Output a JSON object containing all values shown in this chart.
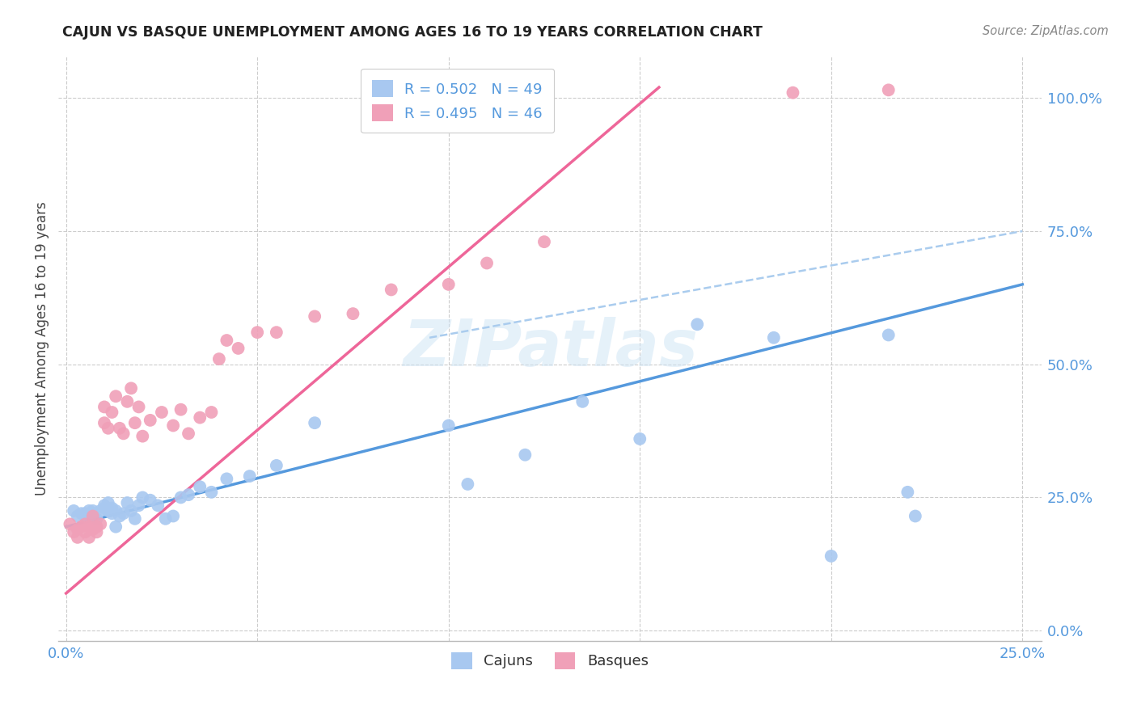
{
  "title": "CAJUN VS BASQUE UNEMPLOYMENT AMONG AGES 16 TO 19 YEARS CORRELATION CHART",
  "source": "Source: ZipAtlas.com",
  "ylabel": "Unemployment Among Ages 16 to 19 years",
  "legend_cajun": "R = 0.502   N = 49",
  "legend_basque": "R = 0.495   N = 46",
  "cajun_color": "#a8c8f0",
  "basque_color": "#f0a0b8",
  "trend_cajun_color": "#5599dd",
  "trend_basque_color": "#ee6699",
  "trend_dashed_color": "#aaccee",
  "watermark_text": "ZIPatlas",
  "cajun_scatter_x": [
    0.002,
    0.003,
    0.004,
    0.005,
    0.005,
    0.006,
    0.006,
    0.007,
    0.007,
    0.008,
    0.009,
    0.01,
    0.01,
    0.011,
    0.011,
    0.012,
    0.012,
    0.013,
    0.013,
    0.014,
    0.015,
    0.016,
    0.017,
    0.018,
    0.019,
    0.02,
    0.022,
    0.024,
    0.026,
    0.028,
    0.03,
    0.032,
    0.035,
    0.038,
    0.042,
    0.048,
    0.055,
    0.065,
    0.1,
    0.105,
    0.12,
    0.135,
    0.15,
    0.165,
    0.185,
    0.2,
    0.215,
    0.22,
    0.222
  ],
  "cajun_scatter_y": [
    0.225,
    0.215,
    0.22,
    0.215,
    0.22,
    0.225,
    0.215,
    0.225,
    0.22,
    0.21,
    0.225,
    0.23,
    0.235,
    0.24,
    0.225,
    0.22,
    0.23,
    0.225,
    0.195,
    0.215,
    0.22,
    0.24,
    0.225,
    0.21,
    0.235,
    0.25,
    0.245,
    0.235,
    0.21,
    0.215,
    0.25,
    0.255,
    0.27,
    0.26,
    0.285,
    0.29,
    0.31,
    0.39,
    0.385,
    0.275,
    0.33,
    0.43,
    0.36,
    0.575,
    0.55,
    0.14,
    0.555,
    0.26,
    0.215
  ],
  "basque_scatter_x": [
    0.001,
    0.002,
    0.003,
    0.003,
    0.004,
    0.005,
    0.005,
    0.006,
    0.006,
    0.007,
    0.007,
    0.008,
    0.008,
    0.009,
    0.01,
    0.01,
    0.011,
    0.012,
    0.013,
    0.014,
    0.015,
    0.016,
    0.017,
    0.018,
    0.019,
    0.02,
    0.022,
    0.025,
    0.028,
    0.03,
    0.032,
    0.035,
    0.038,
    0.04,
    0.042,
    0.045,
    0.05,
    0.055,
    0.065,
    0.075,
    0.085,
    0.1,
    0.11,
    0.125,
    0.19,
    0.215
  ],
  "basque_scatter_y": [
    0.2,
    0.185,
    0.175,
    0.19,
    0.195,
    0.185,
    0.2,
    0.175,
    0.195,
    0.19,
    0.215,
    0.195,
    0.185,
    0.2,
    0.39,
    0.42,
    0.38,
    0.41,
    0.44,
    0.38,
    0.37,
    0.43,
    0.455,
    0.39,
    0.42,
    0.365,
    0.395,
    0.41,
    0.385,
    0.415,
    0.37,
    0.4,
    0.41,
    0.51,
    0.545,
    0.53,
    0.56,
    0.56,
    0.59,
    0.595,
    0.64,
    0.65,
    0.69,
    0.73,
    1.01,
    1.015
  ],
  "cajun_trend_x": [
    0.0,
    0.25
  ],
  "cajun_trend_y": [
    0.195,
    0.65
  ],
  "basque_trend_x": [
    0.0,
    0.155
  ],
  "basque_trend_y": [
    0.07,
    1.02
  ],
  "dashed_trend_x": [
    0.095,
    0.25
  ],
  "dashed_trend_y": [
    0.55,
    0.75
  ],
  "xlim": [
    -0.002,
    0.255
  ],
  "ylim": [
    -0.02,
    1.08
  ],
  "xgrid_vals": [
    0.0,
    0.05,
    0.1,
    0.15,
    0.2,
    0.25
  ],
  "ygrid_vals": [
    0.0,
    0.25,
    0.5,
    0.75,
    1.0
  ],
  "ytick_labels": [
    "0.0%",
    "25.0%",
    "50.0%",
    "75.0%",
    "100.0%"
  ],
  "xtick_labels": [
    "0.0%",
    "25.0%"
  ]
}
